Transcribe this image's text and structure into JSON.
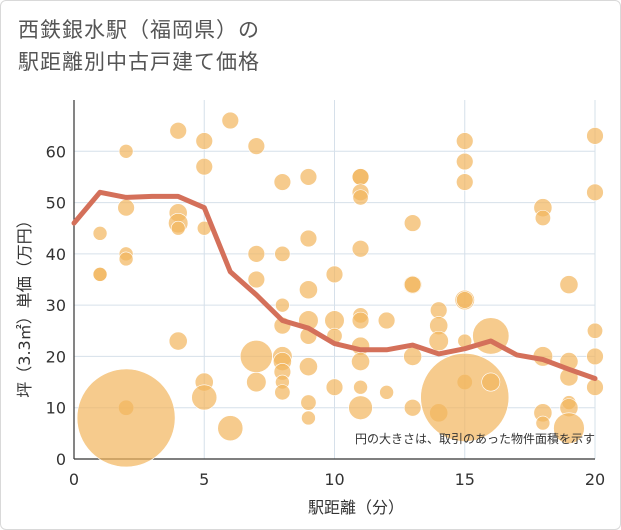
{
  "title_line1": "西鉄銀水駅（福岡県）の",
  "title_line2": "駅距離別中古戸建て価格",
  "chart_data": {
    "type": "scatter",
    "xlabel": "駅距離（分）",
    "ylabel": "坪（3.3㎡）単価（万円）",
    "xlim": [
      0,
      20
    ],
    "ylim": [
      0,
      70
    ],
    "xticks": [
      0,
      5,
      10,
      15,
      20
    ],
    "yticks": [
      0,
      10,
      20,
      30,
      40,
      50,
      60
    ],
    "note": "円の大きさは、取引のあった物件面積を示す",
    "colors": {
      "bubble": "#f2b55c",
      "line": "#d4705a",
      "grid": "#d6e0ea"
    },
    "points": [
      {
        "x": 1,
        "y": 44,
        "s": 1
      },
      {
        "x": 1,
        "y": 36,
        "s": 1
      },
      {
        "x": 1,
        "y": 36,
        "s": 1
      },
      {
        "x": 2,
        "y": 60,
        "s": 1
      },
      {
        "x": 2,
        "y": 49,
        "s": 1.2
      },
      {
        "x": 2,
        "y": 40,
        "s": 1
      },
      {
        "x": 2,
        "y": 39,
        "s": 1
      },
      {
        "x": 2,
        "y": 10,
        "s": 1.1
      },
      {
        "x": 2,
        "y": 8,
        "s": 7
      },
      {
        "x": 4,
        "y": 64,
        "s": 1.2
      },
      {
        "x": 4,
        "y": 48,
        "s": 1.3
      },
      {
        "x": 4,
        "y": 46,
        "s": 1.4
      },
      {
        "x": 4,
        "y": 45,
        "s": 1
      },
      {
        "x": 4,
        "y": 23,
        "s": 1.3
      },
      {
        "x": 5,
        "y": 62,
        "s": 1.2
      },
      {
        "x": 5,
        "y": 57,
        "s": 1.2
      },
      {
        "x": 5,
        "y": 45,
        "s": 1
      },
      {
        "x": 5,
        "y": 15,
        "s": 1.3
      },
      {
        "x": 5,
        "y": 12,
        "s": 1.8
      },
      {
        "x": 6,
        "y": 66,
        "s": 1.2
      },
      {
        "x": 6,
        "y": 6,
        "s": 1.8
      },
      {
        "x": 7,
        "y": 61,
        "s": 1.2
      },
      {
        "x": 7,
        "y": 40,
        "s": 1.2
      },
      {
        "x": 7,
        "y": 35,
        "s": 1.2
      },
      {
        "x": 7,
        "y": 20,
        "s": 2.3
      },
      {
        "x": 7,
        "y": 15,
        "s": 1.4
      },
      {
        "x": 8,
        "y": 54,
        "s": 1.2
      },
      {
        "x": 8,
        "y": 40,
        "s": 1.1
      },
      {
        "x": 8,
        "y": 30,
        "s": 1
      },
      {
        "x": 8,
        "y": 26,
        "s": 1.2
      },
      {
        "x": 8,
        "y": 20,
        "s": 1.4
      },
      {
        "x": 8,
        "y": 19,
        "s": 1.3
      },
      {
        "x": 8,
        "y": 17,
        "s": 1.2
      },
      {
        "x": 8,
        "y": 15,
        "s": 1
      },
      {
        "x": 8,
        "y": 13,
        "s": 1.1
      },
      {
        "x": 9,
        "y": 55,
        "s": 1.2
      },
      {
        "x": 9,
        "y": 43,
        "s": 1.2
      },
      {
        "x": 9,
        "y": 33,
        "s": 1.3
      },
      {
        "x": 9,
        "y": 27,
        "s": 1.4
      },
      {
        "x": 9,
        "y": 24,
        "s": 1.2
      },
      {
        "x": 9,
        "y": 18,
        "s": 1.3
      },
      {
        "x": 9,
        "y": 11,
        "s": 1.1
      },
      {
        "x": 9,
        "y": 8,
        "s": 1
      },
      {
        "x": 10,
        "y": 36,
        "s": 1.2
      },
      {
        "x": 10,
        "y": 27,
        "s": 1.4
      },
      {
        "x": 10,
        "y": 24,
        "s": 1.1
      },
      {
        "x": 10,
        "y": 14,
        "s": 1.2
      },
      {
        "x": 11,
        "y": 55,
        "s": 1.2
      },
      {
        "x": 11,
        "y": 55,
        "s": 1.2
      },
      {
        "x": 11,
        "y": 52,
        "s": 1.2
      },
      {
        "x": 11,
        "y": 51,
        "s": 1.1
      },
      {
        "x": 11,
        "y": 41,
        "s": 1.2
      },
      {
        "x": 11,
        "y": 28,
        "s": 1.1
      },
      {
        "x": 11,
        "y": 27,
        "s": 1.2
      },
      {
        "x": 11,
        "y": 22,
        "s": 1.3
      },
      {
        "x": 11,
        "y": 19,
        "s": 1.3
      },
      {
        "x": 11,
        "y": 14,
        "s": 1
      },
      {
        "x": 11,
        "y": 10,
        "s": 1.7
      },
      {
        "x": 12,
        "y": 27,
        "s": 1.2
      },
      {
        "x": 12,
        "y": 13,
        "s": 1
      },
      {
        "x": 13,
        "y": 46,
        "s": 1.2
      },
      {
        "x": 13,
        "y": 34,
        "s": 1.3
      },
      {
        "x": 13,
        "y": 34,
        "s": 1.2
      },
      {
        "x": 13,
        "y": 20,
        "s": 1.3
      },
      {
        "x": 13,
        "y": 10,
        "s": 1.2
      },
      {
        "x": 14,
        "y": 29,
        "s": 1.2
      },
      {
        "x": 14,
        "y": 26,
        "s": 1.3
      },
      {
        "x": 14,
        "y": 23,
        "s": 1.4
      },
      {
        "x": 14,
        "y": 9,
        "s": 1.3
      },
      {
        "x": 15,
        "y": 62,
        "s": 1.2
      },
      {
        "x": 15,
        "y": 58,
        "s": 1.2
      },
      {
        "x": 15,
        "y": 54,
        "s": 1.2
      },
      {
        "x": 15,
        "y": 31,
        "s": 1.4
      },
      {
        "x": 15,
        "y": 31,
        "s": 1.2
      },
      {
        "x": 15,
        "y": 23,
        "s": 1
      },
      {
        "x": 15,
        "y": 15,
        "s": 1.1
      },
      {
        "x": 15,
        "y": 12,
        "s": 6.3
      },
      {
        "x": 16,
        "y": 24,
        "s": 2.6
      },
      {
        "x": 16,
        "y": 15,
        "s": 1.3
      },
      {
        "x": 18,
        "y": 49,
        "s": 1.3
      },
      {
        "x": 18,
        "y": 47,
        "s": 1.1
      },
      {
        "x": 18,
        "y": 20,
        "s": 1.4
      },
      {
        "x": 18,
        "y": 9,
        "s": 1.3
      },
      {
        "x": 18,
        "y": 7,
        "s": 1
      },
      {
        "x": 19,
        "y": 34,
        "s": 1.3
      },
      {
        "x": 19,
        "y": 19,
        "s": 1.3
      },
      {
        "x": 19,
        "y": 16,
        "s": 1.3
      },
      {
        "x": 19,
        "y": 11,
        "s": 1
      },
      {
        "x": 19,
        "y": 10,
        "s": 1.3
      },
      {
        "x": 19,
        "y": 6,
        "s": 2.2
      },
      {
        "x": 20,
        "y": 63,
        "s": 1.2
      },
      {
        "x": 20,
        "y": 52,
        "s": 1.2
      },
      {
        "x": 20,
        "y": 25,
        "s": 1.1
      },
      {
        "x": 20,
        "y": 20,
        "s": 1.2
      },
      {
        "x": 20,
        "y": 14,
        "s": 1.2
      }
    ],
    "trend": {
      "x": [
        0,
        1,
        2,
        3,
        4,
        5,
        6,
        7,
        8,
        9,
        10,
        11,
        12,
        13,
        14,
        15,
        16,
        17,
        18,
        19,
        20
      ],
      "y": [
        46,
        52,
        51,
        51.2,
        51.2,
        49,
        36.5,
        32,
        27,
        25.5,
        22.5,
        21.3,
        21.3,
        22.2,
        20.5,
        21.5,
        23,
        20.3,
        19.4,
        17.5,
        15.7
      ]
    }
  }
}
